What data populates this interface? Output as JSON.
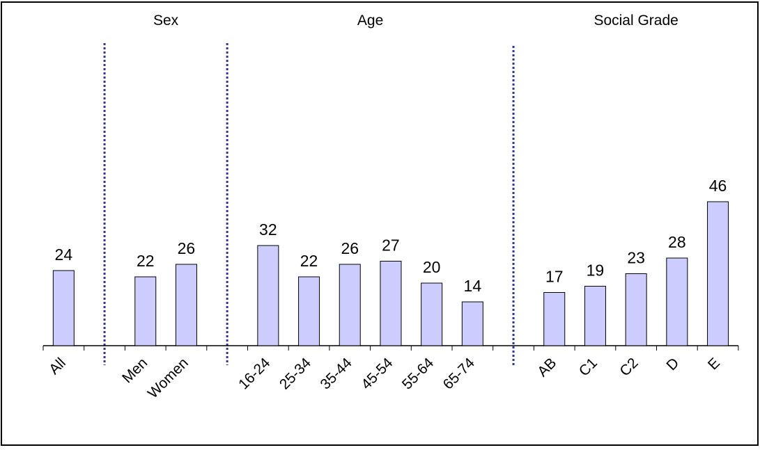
{
  "chart_data": {
    "type": "bar",
    "title": "",
    "xlabel": "",
    "ylabel": "",
    "ylim": [
      0,
      50
    ],
    "grid": false,
    "legend": "none",
    "categories": [
      "All",
      "",
      "Men",
      "Women",
      "",
      "16-24",
      "25-34",
      "35-44",
      "45-54",
      "55-64",
      "65-74",
      "",
      "AB",
      "C1",
      "C2",
      "D",
      "E"
    ],
    "values": [
      24,
      null,
      22,
      26,
      null,
      32,
      22,
      26,
      27,
      20,
      14,
      null,
      17,
      19,
      23,
      28,
      46
    ],
    "groups": [
      {
        "label": "Sex",
        "categories": [
          "Men",
          "Women"
        ]
      },
      {
        "label": "Age",
        "categories": [
          "16-24",
          "25-34",
          "35-44",
          "45-54",
          "55-64",
          "65-74"
        ]
      },
      {
        "label": "Social Grade",
        "categories": [
          "AB",
          "C1",
          "C2",
          "D",
          "E"
        ]
      }
    ],
    "colors": {
      "bar_fill": "#ccccff",
      "bar_stroke": "#000000",
      "divider": "#333399"
    }
  }
}
